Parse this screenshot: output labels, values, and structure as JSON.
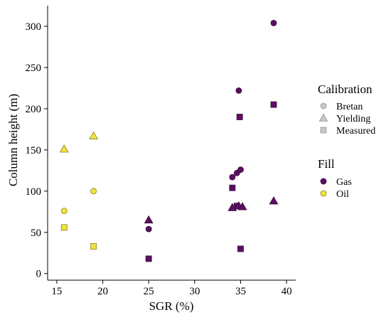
{
  "chart_data": {
    "type": "scatter",
    "title": "",
    "xlabel": "SGR (%)",
    "ylabel": "Column height (m)",
    "xlim": [
      14,
      41
    ],
    "ylim": [
      -8,
      325
    ],
    "xticks": [
      15,
      20,
      25,
      30,
      35,
      40
    ],
    "yticks": [
      0,
      50,
      100,
      150,
      200,
      250,
      300
    ],
    "grid": false,
    "legend": {
      "placement": "right",
      "shape_title": "Calibration",
      "shape_entries": [
        {
          "label": "Bretan",
          "marker": "circle"
        },
        {
          "label": "Yielding",
          "marker": "triangle"
        },
        {
          "label": "Measured",
          "marker": "square"
        }
      ],
      "fill_title": "Fill",
      "fill_entries": [
        {
          "label": "Gas",
          "color": "#5b0f5f"
        },
        {
          "label": "Oil",
          "color": "#f2e33a"
        }
      ],
      "neutral_color": "#c7c7c7"
    },
    "points": [
      {
        "x": 15.8,
        "y": 76,
        "marker": "circle",
        "fill": "Oil"
      },
      {
        "x": 15.8,
        "y": 56,
        "marker": "square",
        "fill": "Oil"
      },
      {
        "x": 15.8,
        "y": 151,
        "marker": "triangle",
        "fill": "Oil"
      },
      {
        "x": 19.0,
        "y": 100,
        "marker": "circle",
        "fill": "Oil"
      },
      {
        "x": 19.0,
        "y": 167,
        "marker": "triangle",
        "fill": "Oil"
      },
      {
        "x": 19.0,
        "y": 33,
        "marker": "square",
        "fill": "Oil"
      },
      {
        "x": 25.0,
        "y": 54,
        "marker": "circle",
        "fill": "Gas"
      },
      {
        "x": 25.0,
        "y": 65,
        "marker": "triangle",
        "fill": "Gas"
      },
      {
        "x": 25.0,
        "y": 18,
        "marker": "square",
        "fill": "Gas"
      },
      {
        "x": 34.1,
        "y": 117,
        "marker": "circle",
        "fill": "Gas"
      },
      {
        "x": 34.6,
        "y": 122,
        "marker": "circle",
        "fill": "Gas"
      },
      {
        "x": 35.0,
        "y": 126,
        "marker": "circle",
        "fill": "Gas"
      },
      {
        "x": 34.8,
        "y": 222,
        "marker": "circle",
        "fill": "Gas"
      },
      {
        "x": 38.6,
        "y": 304,
        "marker": "circle",
        "fill": "Gas"
      },
      {
        "x": 34.9,
        "y": 190,
        "marker": "square",
        "fill": "Gas"
      },
      {
        "x": 38.6,
        "y": 205,
        "marker": "square",
        "fill": "Gas"
      },
      {
        "x": 34.1,
        "y": 104,
        "marker": "square",
        "fill": "Gas"
      },
      {
        "x": 34.6,
        "y": 82,
        "marker": "square",
        "fill": "Gas"
      },
      {
        "x": 35.0,
        "y": 30,
        "marker": "square",
        "fill": "Gas"
      },
      {
        "x": 34.1,
        "y": 80,
        "marker": "triangle",
        "fill": "Gas"
      },
      {
        "x": 34.8,
        "y": 82,
        "marker": "triangle",
        "fill": "Gas"
      },
      {
        "x": 35.2,
        "y": 81,
        "marker": "triangle",
        "fill": "Gas"
      },
      {
        "x": 38.6,
        "y": 88,
        "marker": "triangle",
        "fill": "Gas"
      }
    ]
  }
}
